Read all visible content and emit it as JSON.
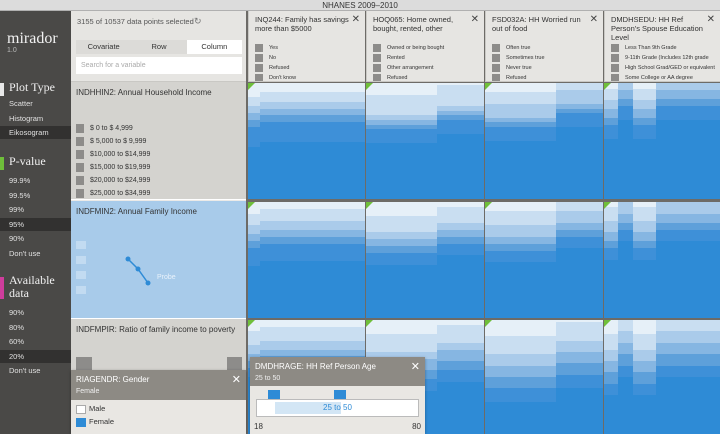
{
  "window": {
    "title": "NHANES 2009–2010"
  },
  "app": {
    "name": "mirador",
    "version": "1.0"
  },
  "sidebar": {
    "plot_type": {
      "heading": "Plot Type",
      "items": [
        "Scatter",
        "Histogram",
        "Eikosogram"
      ],
      "selected": 2
    },
    "pvalue": {
      "heading": "P-value",
      "items": [
        "99.9%",
        "99.5%",
        "99%",
        "95%",
        "90%",
        "Don't use"
      ],
      "selected": 3
    },
    "available": {
      "heading": "Available data",
      "items": [
        "90%",
        "80%",
        "60%",
        "20%",
        "Don't use"
      ],
      "selected": 3
    }
  },
  "colors": {
    "plot_marker": "#e8e8e8",
    "pvalue_marker": "#6fbf3a",
    "available_marker": "#cf3d9c",
    "bar_dark": "#2e8bd6",
    "bar_light": "#e2eef8",
    "selection": "#a8cbea",
    "significance": "#6fbf3a"
  },
  "selection_bar": {
    "count_text": "3155 of 10537 data points selected",
    "refresh_icon": "refresh-icon"
  },
  "tabs": [
    "Covariate",
    "Row",
    "Column"
  ],
  "active_tab": 2,
  "search": {
    "placeholder": "Search for a variable"
  },
  "rows": [
    {
      "name": "INDHHIN2: Annual Household Income",
      "levels": [
        "$     0 to $ 4,999",
        "$ 5,000 to $ 9,999",
        "$10,000 to $14,999",
        "$15,000 to $19,999",
        "$20,000 to $24,999",
        "$25,000 to $34,999"
      ]
    },
    {
      "name": "INDFMIN2: Annual Family Income",
      "levels": [],
      "probe_label": "Probe"
    },
    {
      "name": "INDFMPIR: Ratio of family income to poverty",
      "levels": []
    }
  ],
  "columns": [
    {
      "name": "INQ244: Family has savings more than $5000",
      "levels": [
        "Yes",
        "No",
        "Refused",
        "Don't know"
      ]
    },
    {
      "name": "HOQ065: Home owned, bought, rented, other",
      "levels": [
        "Owned or being bought",
        "Rented",
        "Other arrangement",
        "Refused"
      ]
    },
    {
      "name": "FSD032A: HH Worried run out of food",
      "levels": [
        "Often true",
        "Sometimes true",
        "Never true",
        "Refused"
      ]
    },
    {
      "name": "DMDHSEDU: HH Ref Person's Spouse Education Level",
      "levels": [
        "Less Than 9th Grade",
        "9-11th Grade (Includes 12th grade",
        "High School Grad/GED or equivalent",
        "Some College or AA degree"
      ]
    }
  ],
  "gender_panel": {
    "title": "RIAGENDR: Gender",
    "subtitle": "Female",
    "options": [
      "Male",
      "Female"
    ],
    "checked": [
      false,
      true
    ]
  },
  "age_panel": {
    "title": "DMDHRAGE: HH Ref Person Age",
    "subtitle": "25 to 50",
    "range_low": 25,
    "range_high": 50,
    "range_label": "25 to 50",
    "min": 18,
    "max": 80
  }
}
